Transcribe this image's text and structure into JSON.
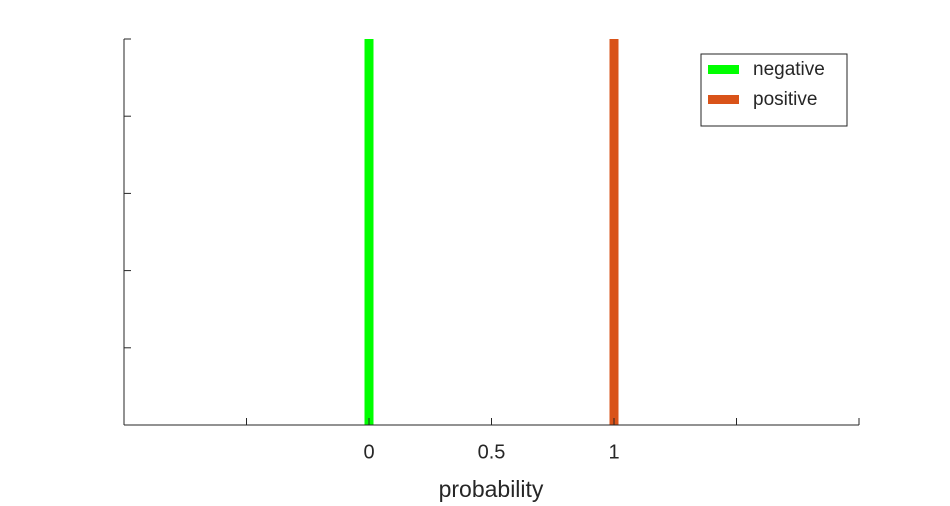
{
  "chart_data": {
    "type": "bar",
    "xlabel": "probability",
    "series": [
      {
        "name": "negative",
        "color": "#00ff00",
        "x": [
          0
        ],
        "values": [
          1
        ]
      },
      {
        "name": "positive",
        "color": "#d95319",
        "x": [
          1
        ],
        "values": [
          1
        ]
      }
    ],
    "xlim": [
      -1,
      2
    ],
    "xticks": [
      {
        "value": -1,
        "label": null
      },
      {
        "value": -0.5,
        "label": null
      },
      0,
      0.5,
      1,
      {
        "value": 1.5,
        "label": null
      },
      {
        "value": 2,
        "label": null
      }
    ],
    "ylim": [
      0,
      1
    ],
    "yticks": [
      {
        "value": 0,
        "label": null
      },
      {
        "value": 0.2,
        "label": null
      },
      {
        "value": 0.4,
        "label": null
      },
      {
        "value": 0.6,
        "label": null
      },
      {
        "value": 0.8,
        "label": null
      },
      {
        "value": 1,
        "label": null
      }
    ],
    "legend": "upper-right"
  }
}
